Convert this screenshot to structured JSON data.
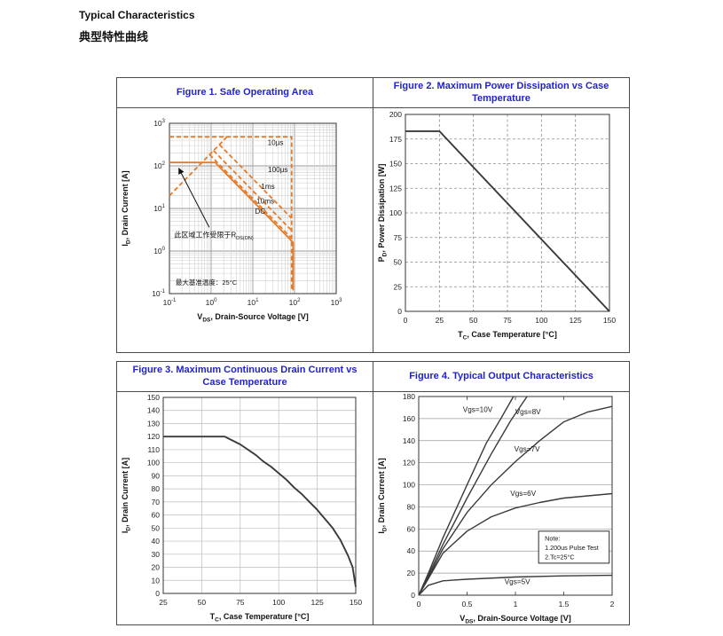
{
  "page": {
    "title_en": "Typical Characteristics",
    "title_zh": "典型特性曲线"
  },
  "colors": {
    "title_blue": "#2222CC",
    "soa_orange": "#E87A25",
    "curve_dark": "#3A3A3A",
    "grid_minor": "#CFCFCF",
    "grid_major": "#9A9A9A",
    "grid_dashed": "#8A8A8A",
    "grid_solid": "#BDBDBD",
    "border_dark": "#333333",
    "text_dark": "#1A1A1A"
  },
  "chart_data": [
    {
      "id": "fig1",
      "type": "line",
      "title": "Figure 1. Safe Operating Area",
      "xscale": "log",
      "yscale": "log",
      "xlim": [
        0.1,
        1000
      ],
      "ylim": [
        0.1,
        1000
      ],
      "xtick_exponents": [
        -1,
        0,
        1,
        2,
        3
      ],
      "ytick_exponents": [
        -1,
        0,
        1,
        2,
        3
      ],
      "grid": "log-both",
      "series_color": "#E87A25",
      "xlabel_parts": [
        {
          "t": "V"
        },
        {
          "t": "DS",
          "sub": true
        },
        {
          "t": ", Drain-Source Voltage [V]"
        }
      ],
      "ylabel_parts": [
        {
          "t": "I"
        },
        {
          "t": "D",
          "sub": true
        },
        {
          "t": ", Drain Current [A]"
        }
      ],
      "series": [
        {
          "name": "rdson-limit-line",
          "dash": true,
          "points": [
            [
              0.1,
              20
            ],
            [
              2.4,
              480
            ]
          ]
        },
        {
          "name": "10us-limit",
          "dash": true,
          "points": [
            [
              0.1,
              480
            ],
            [
              85,
              480
            ],
            [
              85,
              0.12
            ]
          ]
        },
        {
          "name": "100us-limit",
          "dash": true,
          "points": [
            [
              1.58,
              316
            ],
            [
              85,
              5.9
            ]
          ]
        },
        {
          "name": "1ms-limit",
          "dash": true,
          "points": [
            [
              1.14,
              228
            ],
            [
              85,
              3.05
            ]
          ]
        },
        {
          "name": "10ms-limit",
          "dash": true,
          "points": [
            [
              0.92,
              184
            ],
            [
              85,
              2.0
            ]
          ]
        },
        {
          "name": "dc-limit",
          "dash": false,
          "points": [
            [
              0.1,
              120
            ],
            [
              1.25,
              120
            ],
            [
              92,
              1.6
            ],
            [
              92,
              0.12
            ]
          ]
        }
      ],
      "curve_labels": [
        {
          "text": "10µs",
          "x": 35,
          "y": 310
        },
        {
          "text": "100µs",
          "x": 40,
          "y": 71
        },
        {
          "text": "1ms",
          "x": 23,
          "y": 29
        },
        {
          "text": "10ms",
          "x": 20,
          "y": 13
        },
        {
          "text": "DC",
          "x": 15,
          "y": 7.5
        }
      ],
      "annotations": {
        "arrow": {
          "from": [
            0.9,
            3.6
          ],
          "to": [
            0.17,
            85
          ]
        },
        "arrow_text_parts": [
          {
            "t": "此区域工作受限于R"
          },
          {
            "t": "DS(ON)",
            "sub": true
          }
        ],
        "arrow_text_pos": [
          0.13,
          2.1
        ],
        "corner_text": "最大基准温度：25°C",
        "corner_text_pos": [
          0.14,
          0.16
        ]
      }
    },
    {
      "id": "fig2",
      "type": "line",
      "title": "Figure 2. Maximum Power Dissipation vs Case Temperature",
      "xlim": [
        0,
        150
      ],
      "ylim": [
        0,
        200
      ],
      "xticks": [
        0,
        25,
        50,
        75,
        100,
        125,
        150
      ],
      "yticks": [
        0,
        25,
        50,
        75,
        100,
        125,
        150,
        175,
        200
      ],
      "grid": "dashed-both",
      "series_color": "#3A3A3A",
      "xlabel_parts": [
        {
          "t": "T"
        },
        {
          "t": "C",
          "sub": true
        },
        {
          "t": ", Case Temperature [°C]"
        }
      ],
      "ylabel_parts": [
        {
          "t": "P"
        },
        {
          "t": "D",
          "sub": true
        },
        {
          "t": ", Power Dissipation [W]"
        }
      ],
      "series": [
        {
          "name": "pd-vs-tc",
          "dash": false,
          "points": [
            [
              0,
              183
            ],
            [
              25,
              183
            ],
            [
              150,
              0
            ]
          ]
        }
      ],
      "curve_labels": []
    },
    {
      "id": "fig3",
      "type": "line",
      "title": "Figure 3. Maximum Continuous Drain Current vs Case Temperature",
      "xlim": [
        25,
        150
      ],
      "ylim": [
        0,
        150
      ],
      "xticks": [
        25,
        50,
        75,
        100,
        125,
        150
      ],
      "yticks": [
        0,
        10,
        20,
        30,
        40,
        50,
        60,
        70,
        80,
        90,
        100,
        110,
        120,
        130,
        140,
        150
      ],
      "grid": "solid-both",
      "series_color": "#3A3A3A",
      "xlabel_parts": [
        {
          "t": "T"
        },
        {
          "t": "C",
          "sub": true
        },
        {
          "t": ", Case Temperature [°C]"
        }
      ],
      "ylabel_parts": [
        {
          "t": "I"
        },
        {
          "t": "D",
          "sub": true
        },
        {
          "t": ", Drain Current [A]"
        }
      ],
      "series": [
        {
          "name": "id-vs-tc",
          "dash": false,
          "points": [
            [
              25,
              120
            ],
            [
              65,
              120
            ],
            [
              70,
              117
            ],
            [
              75,
              114
            ],
            [
              80,
              110
            ],
            [
              85,
              106
            ],
            [
              90,
              101
            ],
            [
              95,
              97
            ],
            [
              100,
              92
            ],
            [
              105,
              87
            ],
            [
              110,
              81
            ],
            [
              115,
              76
            ],
            [
              120,
              70
            ],
            [
              125,
              64
            ],
            [
              130,
              57
            ],
            [
              135,
              50
            ],
            [
              140,
              41
            ],
            [
              145,
              29
            ],
            [
              148,
              20
            ],
            [
              150,
              5
            ]
          ]
        }
      ],
      "curve_labels": []
    },
    {
      "id": "fig4",
      "type": "line",
      "title": "Figure 4. Typical Output Characteristics",
      "xlim": [
        0,
        2
      ],
      "ylim": [
        0,
        180
      ],
      "xticks": [
        0,
        0.5,
        1,
        1.5,
        2
      ],
      "yticks": [
        0,
        20,
        40,
        60,
        80,
        100,
        120,
        140,
        160,
        180
      ],
      "grid": "solid-h",
      "series_color": "#3A3A3A",
      "xlabel_parts": [
        {
          "t": "V"
        },
        {
          "t": "DS",
          "sub": true
        },
        {
          "t": ", Drain-Source Voltage [V]"
        }
      ],
      "ylabel_parts": [
        {
          "t": "I"
        },
        {
          "t": "D",
          "sub": true
        },
        {
          "t": ", Drain Current [A]"
        }
      ],
      "series": [
        {
          "name": "vgs-10v",
          "dash": false,
          "points": [
            [
              0,
              0
            ],
            [
              0.1,
              20
            ],
            [
              0.25,
              52
            ],
            [
              0.5,
              100
            ],
            [
              0.7,
              138
            ],
            [
              0.85,
              160
            ],
            [
              0.98,
              180
            ]
          ]
        },
        {
          "name": "vgs-8v",
          "dash": false,
          "points": [
            [
              0,
              0
            ],
            [
              0.1,
              18
            ],
            [
              0.25,
              46
            ],
            [
              0.5,
              88
            ],
            [
              0.75,
              128
            ],
            [
              0.95,
              158
            ],
            [
              1.12,
              180
            ]
          ]
        },
        {
          "name": "vgs-7v",
          "dash": false,
          "points": [
            [
              0,
              0
            ],
            [
              0.1,
              16
            ],
            [
              0.25,
              42
            ],
            [
              0.5,
              75
            ],
            [
              0.75,
              100
            ],
            [
              1,
              121
            ],
            [
              1.25,
              140
            ],
            [
              1.5,
              157
            ],
            [
              1.75,
              166
            ],
            [
              2,
              171
            ]
          ]
        },
        {
          "name": "vgs-6v",
          "dash": false,
          "points": [
            [
              0,
              0
            ],
            [
              0.1,
              15
            ],
            [
              0.25,
              38
            ],
            [
              0.5,
              58
            ],
            [
              0.75,
              71
            ],
            [
              1,
              79
            ],
            [
              1.25,
              84
            ],
            [
              1.5,
              88
            ],
            [
              1.75,
              90
            ],
            [
              2,
              92
            ]
          ]
        },
        {
          "name": "vgs-5v",
          "dash": false,
          "points": [
            [
              0,
              0
            ],
            [
              0.1,
              9
            ],
            [
              0.25,
              13
            ],
            [
              0.5,
              14.5
            ],
            [
              1,
              16.5
            ],
            [
              1.5,
              17.5
            ],
            [
              2,
              18
            ]
          ]
        }
      ],
      "curve_labels": [
        {
          "text": "Vgs=10V",
          "x": 0.61,
          "y": 166
        },
        {
          "text": "Vgs=8V",
          "x": 1.13,
          "y": 164
        },
        {
          "text": "Vgs=7V",
          "x": 1.12,
          "y": 130
        },
        {
          "text": "Vgs=6V",
          "x": 1.08,
          "y": 90
        },
        {
          "text": "Vgs=5V",
          "x": 1.02,
          "y": 10
        }
      ],
      "note": {
        "lines": [
          "Note:",
          "1.200us Pulse Test",
          "2.Tc=25°C"
        ],
        "x1": 1.24,
        "y1": 58,
        "x2": 1.97,
        "y2": 29
      }
    }
  ]
}
